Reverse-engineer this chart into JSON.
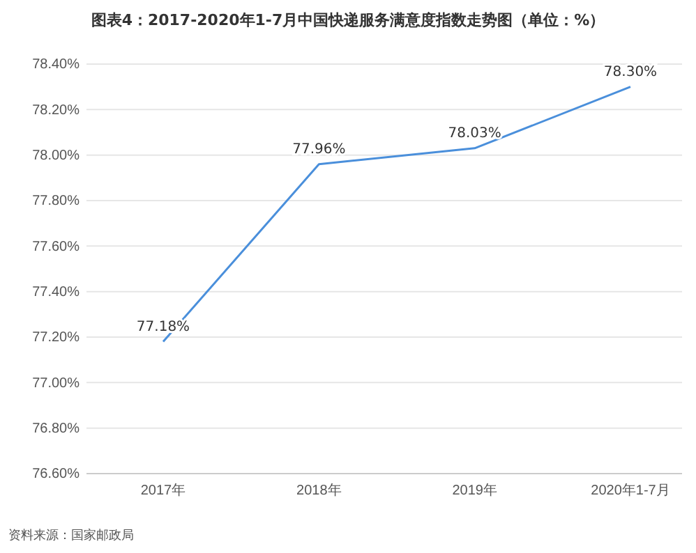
{
  "chart_data": {
    "type": "line",
    "title": "图表4：2017-2020年1-7月中国快递服务满意度指数走势图（单位：%）",
    "categories": [
      "2017年",
      "2018年",
      "2019年",
      "2020年1-7月"
    ],
    "series": [
      {
        "color": "#4a8fdb",
        "values": [
          77.18,
          77.96,
          78.03,
          78.3
        ],
        "value_labels": [
          "77.18%",
          "77.96%",
          "78.03%",
          "78.30%"
        ]
      }
    ],
    "ylim": [
      76.6,
      78.4
    ],
    "yticks": [
      {
        "value": 76.6,
        "label": "76.60%"
      },
      {
        "value": 76.8,
        "label": "76.80%"
      },
      {
        "value": 77,
        "label": "77.00%"
      },
      {
        "value": 77.2,
        "label": "77.20%"
      },
      {
        "value": 77.4,
        "label": "77.40%"
      },
      {
        "value": 77.6,
        "label": "77.60%"
      },
      {
        "value": 77.8,
        "label": "77.80%"
      },
      {
        "value": 78,
        "label": "78.00%"
      },
      {
        "value": 78.2,
        "label": "78.20%"
      },
      {
        "value": 78.4,
        "label": "78.40%"
      }
    ],
    "grid": "y",
    "marker": "none",
    "line_style": "solid",
    "annotations": [
      "资料来源：国家邮政局"
    ]
  }
}
